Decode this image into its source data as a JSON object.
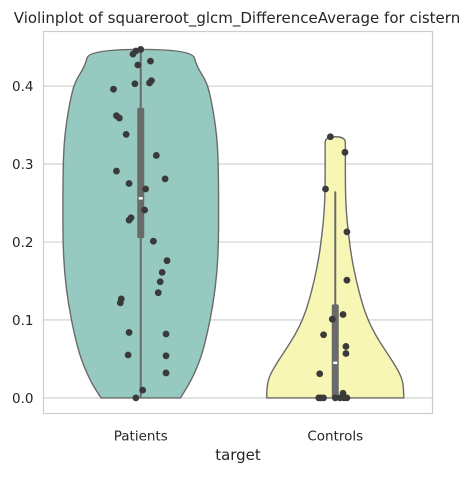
{
  "chart_data": {
    "type": "violin",
    "title": "Violinplot of squareroot_glcm_DifferenceAverage for cistern",
    "xlabel": "target",
    "ylabel": "",
    "categories": [
      "Patients",
      "Controls"
    ],
    "ylim": [
      -0.02,
      0.47
    ],
    "yticks": [
      0.0,
      0.1,
      0.2,
      0.3,
      0.4
    ],
    "ytick_labels": [
      "0.0",
      "0.1",
      "0.2",
      "0.3",
      "0.4"
    ],
    "grid": true,
    "series": [
      {
        "category": "Patients",
        "color": "#96cac0",
        "range": [
          0.0,
          0.447
        ],
        "q1": 0.205,
        "median": 0.256,
        "q3": 0.372,
        "whisker_low": 0.0,
        "whisker_high": 0.447,
        "density": [
          [
            0.0,
            0.51
          ],
          [
            0.02,
            0.64
          ],
          [
            0.05,
            0.77
          ],
          [
            0.08,
            0.85
          ],
          [
            0.12,
            0.93
          ],
          [
            0.16,
            0.98
          ],
          [
            0.2,
            1.0
          ],
          [
            0.24,
            1.0
          ],
          [
            0.28,
            1.0
          ],
          [
            0.32,
            0.99
          ],
          [
            0.35,
            0.96
          ],
          [
            0.38,
            0.91
          ],
          [
            0.405,
            0.85
          ],
          [
            0.425,
            0.72
          ],
          [
            0.447,
            0.66
          ]
        ],
        "points": [
          {
            "y": 0.447,
            "j": 0.0
          },
          {
            "y": 0.445,
            "j": -0.05
          },
          {
            "y": 0.441,
            "j": -0.08
          },
          {
            "y": 0.432,
            "j": 0.1
          },
          {
            "y": 0.427,
            "j": -0.03
          },
          {
            "y": 0.407,
            "j": 0.11
          },
          {
            "y": 0.404,
            "j": 0.09
          },
          {
            "y": 0.403,
            "j": -0.06
          },
          {
            "y": 0.396,
            "j": -0.28
          },
          {
            "y": 0.362,
            "j": -0.25
          },
          {
            "y": 0.359,
            "j": -0.22
          },
          {
            "y": 0.338,
            "j": -0.15
          },
          {
            "y": 0.311,
            "j": 0.16
          },
          {
            "y": 0.291,
            "j": -0.25
          },
          {
            "y": 0.281,
            "j": 0.25
          },
          {
            "y": 0.275,
            "j": -0.12
          },
          {
            "y": 0.268,
            "j": 0.05
          },
          {
            "y": 0.241,
            "j": 0.04
          },
          {
            "y": 0.231,
            "j": -0.1
          },
          {
            "y": 0.228,
            "j": -0.12
          },
          {
            "y": 0.201,
            "j": 0.13
          },
          {
            "y": 0.176,
            "j": 0.27
          },
          {
            "y": 0.161,
            "j": 0.22
          },
          {
            "y": 0.149,
            "j": 0.2
          },
          {
            "y": 0.135,
            "j": 0.18
          },
          {
            "y": 0.127,
            "j": -0.2
          },
          {
            "y": 0.122,
            "j": -0.21
          },
          {
            "y": 0.084,
            "j": -0.12
          },
          {
            "y": 0.082,
            "j": 0.26
          },
          {
            "y": 0.055,
            "j": -0.13
          },
          {
            "y": 0.054,
            "j": 0.26
          },
          {
            "y": 0.032,
            "j": 0.26
          },
          {
            "y": 0.01,
            "j": 0.02
          },
          {
            "y": 0.0,
            "j": -0.05
          }
        ]
      },
      {
        "category": "Controls",
        "color": "#f7f6b5",
        "range": [
          0.0,
          0.335
        ],
        "q1": 0.0,
        "median": 0.045,
        "q3": 0.12,
        "whisker_low": 0.0,
        "whisker_high": 0.265,
        "density": [
          [
            0.0,
            0.88
          ],
          [
            0.01,
            0.88
          ],
          [
            0.025,
            0.86
          ],
          [
            0.04,
            0.78
          ],
          [
            0.06,
            0.65
          ],
          [
            0.08,
            0.52
          ],
          [
            0.1,
            0.42
          ],
          [
            0.12,
            0.35
          ],
          [
            0.15,
            0.27
          ],
          [
            0.18,
            0.21
          ],
          [
            0.21,
            0.17
          ],
          [
            0.24,
            0.14
          ],
          [
            0.27,
            0.13
          ],
          [
            0.3,
            0.13
          ],
          [
            0.32,
            0.13
          ],
          [
            0.335,
            0.13
          ]
        ],
        "points": [
          {
            "y": 0.335,
            "j": -0.05
          },
          {
            "y": 0.315,
            "j": 0.1
          },
          {
            "y": 0.268,
            "j": -0.1
          },
          {
            "y": 0.213,
            "j": 0.12
          },
          {
            "y": 0.151,
            "j": 0.12
          },
          {
            "y": 0.107,
            "j": 0.08
          },
          {
            "y": 0.101,
            "j": -0.03
          },
          {
            "y": 0.081,
            "j": -0.12
          },
          {
            "y": 0.066,
            "j": 0.11
          },
          {
            "y": 0.057,
            "j": 0.11
          },
          {
            "y": 0.031,
            "j": -0.16
          },
          {
            "y": 0.006,
            "j": 0.08
          },
          {
            "y": 0.0,
            "j": -0.17
          },
          {
            "y": 0.0,
            "j": -0.15
          },
          {
            "y": 0.0,
            "j": -0.12
          },
          {
            "y": 0.0,
            "j": 0.0
          },
          {
            "y": 0.0,
            "j": 0.05
          },
          {
            "y": 0.0,
            "j": 0.09
          },
          {
            "y": 0.0,
            "j": 0.12
          }
        ]
      }
    ]
  }
}
